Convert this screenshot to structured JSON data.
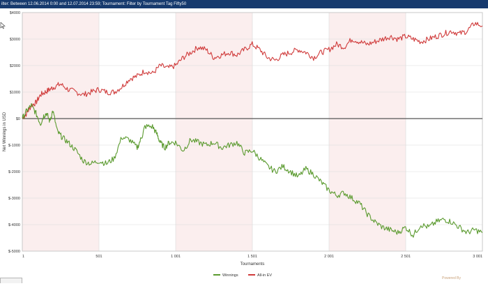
{
  "filter_bar": {
    "text": "ilter: Between 12.06.2014 0:00 and 12.07.2014 23:59; Tournament: Filter by Tournament Tag  Fifty50"
  },
  "icons": {
    "cursor": "arrow-cursor-icon",
    "logo": "poweredby-logo-icon"
  },
  "footer": {
    "logo_text": "Powered By"
  },
  "colors": {
    "winnings": "#5a9a2e",
    "allin_ev": "#d03b3b",
    "band": "#fbeeee",
    "grid": "#d9d9d9",
    "zero_line": "#555555"
  },
  "chart_data": {
    "type": "line",
    "xlabel": "Tournaments",
    "ylabel": "Net Winnings in USD",
    "xlim": [
      1,
      3001
    ],
    "ylim": [
      -5000,
      4000
    ],
    "x_ticks": [
      "1",
      "501",
      "1 001",
      "1 501",
      "2 001",
      "2 501",
      "3 001"
    ],
    "x_tick_values": [
      1,
      501,
      1001,
      1501,
      2001,
      2501,
      3001
    ],
    "y_ticks": [
      "$4000",
      "$3000",
      "$2000",
      "$1000",
      "$0",
      "$-1000",
      "$-2000",
      "$-3000",
      "$-4000",
      "$-5000"
    ],
    "y_tick_values": [
      4000,
      3000,
      2000,
      1000,
      0,
      -1000,
      -2000,
      -3000,
      -4000,
      -5000
    ],
    "legend_position": "bottom-center",
    "grid": true,
    "series": [
      {
        "name": "Winnings",
        "x": [
          1,
          30,
          60,
          90,
          120,
          140,
          160,
          180,
          200,
          230,
          260,
          300,
          350,
          400,
          450,
          500,
          550,
          600,
          650,
          700,
          750,
          780,
          800,
          850,
          880,
          900,
          930,
          960,
          1000,
          1050,
          1100,
          1150,
          1200,
          1250,
          1300,
          1350,
          1400,
          1450,
          1500,
          1550,
          1600,
          1650,
          1700,
          1750,
          1800,
          1850,
          1900,
          1950,
          2000,
          2050,
          2100,
          2150,
          2200,
          2250,
          2300,
          2350,
          2400,
          2450,
          2500,
          2550,
          2600,
          2650,
          2700,
          2750,
          2800,
          2850,
          2900,
          2950,
          3001
        ],
        "y": [
          0,
          300,
          500,
          200,
          -200,
          100,
          200,
          -100,
          300,
          -500,
          -700,
          -900,
          -1200,
          -1600,
          -1700,
          -1600,
          -1700,
          -1500,
          -700,
          -800,
          -1100,
          -700,
          -300,
          -300,
          -600,
          -900,
          -1100,
          -900,
          -900,
          -1200,
          -800,
          -900,
          -1000,
          -900,
          -1100,
          -1000,
          -900,
          -1300,
          -1200,
          -1500,
          -1800,
          -2000,
          -1800,
          -2000,
          -2200,
          -1900,
          -2100,
          -2400,
          -2700,
          -2900,
          -2800,
          -3000,
          -3200,
          -3600,
          -3900,
          -4100,
          -4200,
          -4300,
          -4100,
          -4400,
          -4000,
          -4100,
          -3900,
          -3800,
          -3900,
          -4100,
          -4300,
          -4200,
          -4300
        ]
      },
      {
        "name": "All-in EV",
        "x": [
          1,
          30,
          60,
          90,
          120,
          150,
          180,
          210,
          250,
          300,
          350,
          400,
          450,
          500,
          550,
          600,
          650,
          700,
          750,
          800,
          850,
          900,
          950,
          1000,
          1050,
          1100,
          1150,
          1200,
          1250,
          1300,
          1350,
          1400,
          1450,
          1500,
          1550,
          1600,
          1650,
          1700,
          1750,
          1800,
          1850,
          1900,
          1950,
          2000,
          2050,
          2100,
          2150,
          2200,
          2250,
          2300,
          2350,
          2400,
          2450,
          2500,
          2550,
          2600,
          2650,
          2700,
          2750,
          2800,
          2850,
          2900,
          2950,
          3001
        ],
        "y": [
          0,
          200,
          500,
          600,
          900,
          1000,
          1100,
          1200,
          1300,
          1100,
          1000,
          900,
          1000,
          1100,
          1000,
          1000,
          1200,
          1500,
          1600,
          1800,
          1700,
          2000,
          1900,
          2000,
          2300,
          2500,
          2700,
          2600,
          2300,
          2400,
          2500,
          2400,
          2600,
          2800,
          2600,
          2300,
          2200,
          2400,
          2500,
          2600,
          2500,
          2300,
          2500,
          2600,
          2800,
          2700,
          3000,
          2900,
          2800,
          2900,
          3000,
          3100,
          3000,
          3100,
          3000,
          2900,
          3000,
          3100,
          3200,
          3300,
          3200,
          3300,
          3600,
          3500
        ]
      }
    ]
  }
}
